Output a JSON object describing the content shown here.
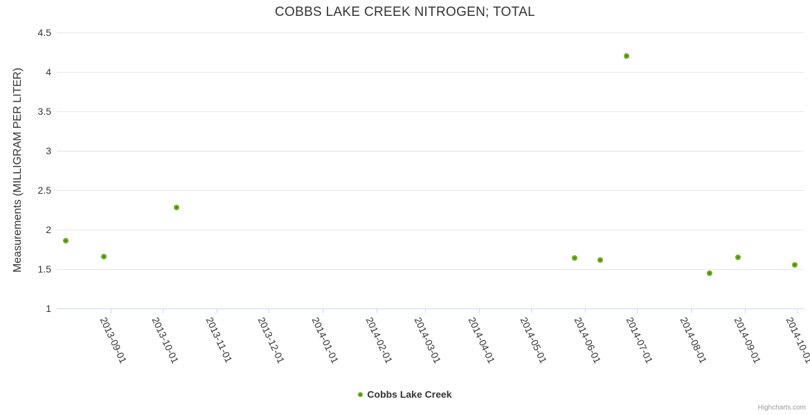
{
  "chart": {
    "credits": "Highcharts.com"
  },
  "chart_data": {
    "type": "scatter",
    "title": "COBBS LAKE CREEK NITROGEN; TOTAL",
    "xlabel": "",
    "ylabel": "Measurements (MILLIGRAM PER LITER)",
    "ylim": [
      1,
      4.5
    ],
    "y_ticks": [
      1,
      1.5,
      2,
      2.5,
      3,
      3.5,
      4,
      4.5
    ],
    "x_range": [
      "2013-08-01",
      "2014-10-05"
    ],
    "x_ticks": [
      "2013-09-01",
      "2013-10-01",
      "2013-11-01",
      "2013-12-01",
      "2014-01-01",
      "2014-02-01",
      "2014-03-01",
      "2014-04-01",
      "2014-05-01",
      "2014-06-01",
      "2014-07-01",
      "2014-08-01",
      "2014-09-01",
      "2014-10-01"
    ],
    "grid": true,
    "legend_position": "bottom-center",
    "series": [
      {
        "name": "Cobbs Lake Creek",
        "color": "#6bb11a",
        "color_center": "#4a860a",
        "points": [
          {
            "date": "2013-08-06",
            "value": 1.86
          },
          {
            "date": "2013-08-28",
            "value": 1.66
          },
          {
            "date": "2013-10-09",
            "value": 2.28
          },
          {
            "date": "2014-05-26",
            "value": 1.64
          },
          {
            "date": "2014-06-10",
            "value": 1.61
          },
          {
            "date": "2014-06-25",
            "value": 4.2
          },
          {
            "date": "2014-08-12",
            "value": 1.45
          },
          {
            "date": "2014-08-28",
            "value": 1.65
          },
          {
            "date": "2014-09-30",
            "value": 1.55
          }
        ]
      }
    ],
    "colors": {
      "title_text": "#333333",
      "axis_label": "#333333",
      "grid_line": "#e6e6e6",
      "axis_line": "#ccd6eb",
      "credits_text": "#999999"
    }
  }
}
